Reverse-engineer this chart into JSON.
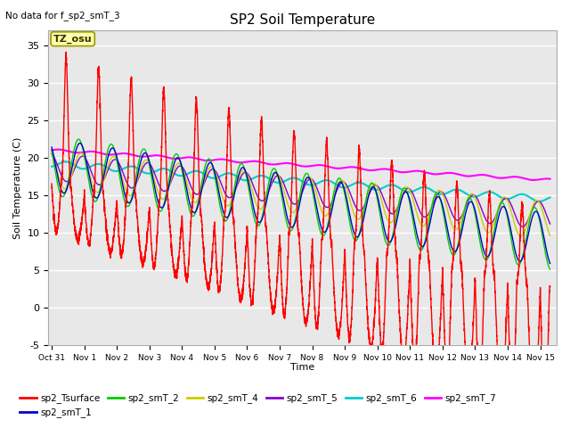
{
  "title": "SP2 Soil Temperature",
  "subtitle": "No data for f_sp2_smT_3",
  "ylabel": "Soil Temperature (C)",
  "xlabel": "Time",
  "tz_label": "TZ_osu",
  "ylim": [
    -5,
    37
  ],
  "yticks": [
    -5,
    0,
    5,
    10,
    15,
    20,
    25,
    30,
    35
  ],
  "plot_bg_color": "#e8e8e8",
  "series": {
    "sp2_Tsurface": {
      "color": "#ff0000",
      "lw": 1.0
    },
    "sp2_smT_1": {
      "color": "#0000cc",
      "lw": 1.0
    },
    "sp2_smT_2": {
      "color": "#00cc00",
      "lw": 1.0
    },
    "sp2_smT_4": {
      "color": "#cccc00",
      "lw": 1.0
    },
    "sp2_smT_5": {
      "color": "#8800cc",
      "lw": 1.0
    },
    "sp2_smT_6": {
      "color": "#00cccc",
      "lw": 1.5
    },
    "sp2_smT_7": {
      "color": "#ff00ff",
      "lw": 1.5
    }
  },
  "x_tick_labels": [
    "Oct 31",
    "Nov 1",
    "Nov 2",
    "Nov 3",
    "Nov 4",
    "Nov 5",
    "Nov 6",
    "Nov 7",
    "Nov 8",
    "Nov 9",
    "Nov 10",
    "Nov 11",
    "Nov 12",
    "Nov 13",
    "Nov 14",
    "Nov 15"
  ],
  "x_tick_positions": [
    0,
    1,
    2,
    3,
    4,
    5,
    6,
    7,
    8,
    9,
    10,
    11,
    12,
    13,
    14,
    15
  ]
}
